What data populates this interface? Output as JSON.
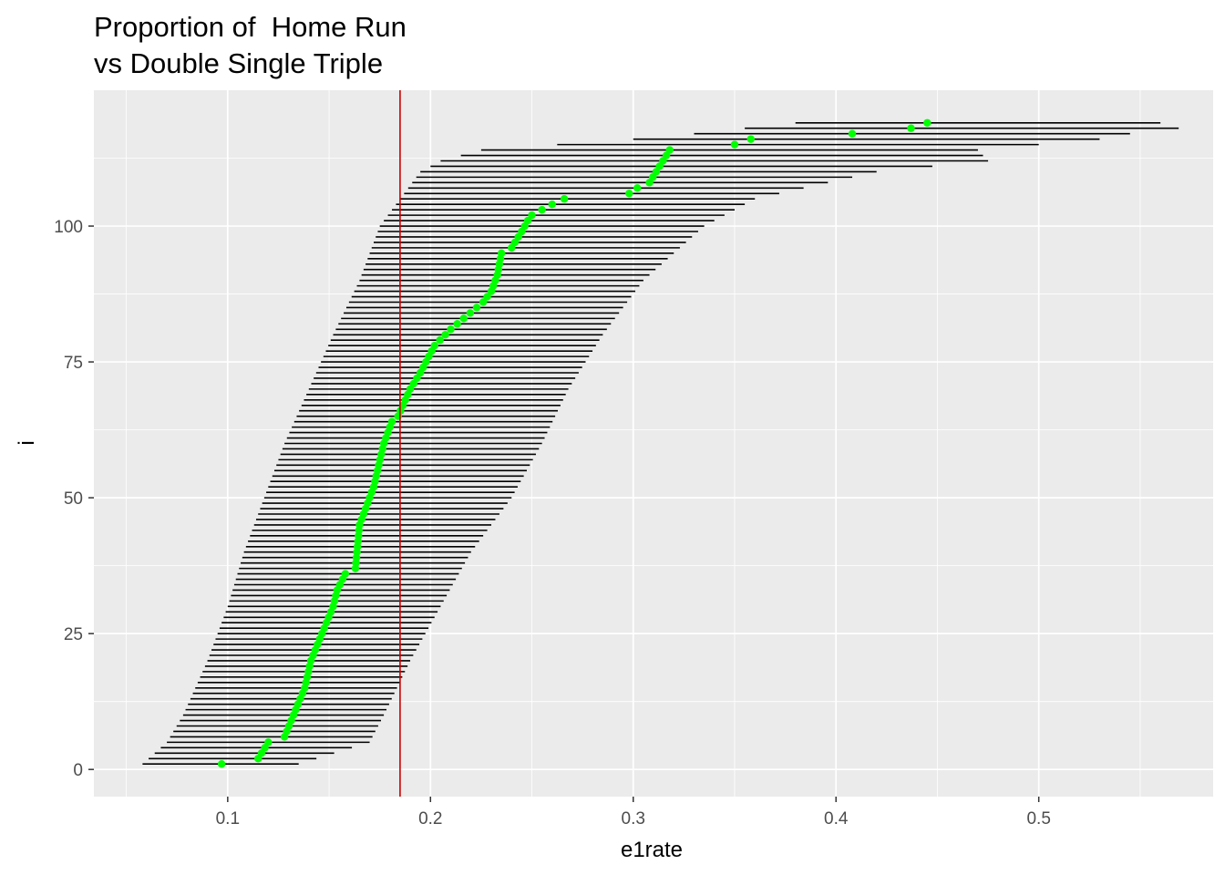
{
  "chart_data": {
    "type": "scatter",
    "title_lines": [
      "Proportion of  Home Run",
      "vs Double Single Triple"
    ],
    "xlabel": "e1rate",
    "ylabel": "i",
    "xlim": [
      0.034,
      0.586
    ],
    "ylim": [
      -5,
      125
    ],
    "xticks": [
      0.1,
      0.2,
      0.3,
      0.4,
      0.5
    ],
    "xtick_labels": [
      "0.1",
      "0.2",
      "0.3",
      "0.4",
      "0.5"
    ],
    "yticks": [
      0,
      25,
      50,
      75,
      100
    ],
    "ytick_labels": [
      "0",
      "25",
      "50",
      "75",
      "100"
    ],
    "grid": true,
    "reference_line": {
      "x": 0.185,
      "color": "#cc0000"
    },
    "point_color": "#00ff00",
    "interval_color": "#000000",
    "point_knots": [
      [
        1,
        0.097
      ],
      [
        2,
        0.115
      ],
      [
        5,
        0.12
      ],
      [
        6,
        0.128
      ],
      [
        15,
        0.138
      ],
      [
        20,
        0.141
      ],
      [
        30,
        0.152
      ],
      [
        33,
        0.154
      ],
      [
        36,
        0.158
      ],
      [
        37,
        0.163
      ],
      [
        45,
        0.165
      ],
      [
        52,
        0.172
      ],
      [
        60,
        0.177
      ],
      [
        64,
        0.181
      ],
      [
        65,
        0.184
      ],
      [
        70,
        0.19
      ],
      [
        73,
        0.195
      ],
      [
        78,
        0.202
      ],
      [
        81,
        0.21
      ],
      [
        86,
        0.226
      ],
      [
        88,
        0.23
      ],
      [
        91,
        0.233
      ],
      [
        95,
        0.235
      ],
      [
        96,
        0.24
      ],
      [
        99,
        0.245
      ],
      [
        101,
        0.248
      ],
      [
        102,
        0.25
      ],
      [
        104,
        0.26
      ],
      [
        105,
        0.266
      ],
      [
        106,
        0.298
      ],
      [
        107,
        0.302
      ],
      [
        108,
        0.308
      ],
      [
        114,
        0.318
      ],
      [
        115,
        0.35
      ],
      [
        116,
        0.358
      ],
      [
        117,
        0.408
      ],
      [
        118,
        0.437
      ],
      [
        119,
        0.445
      ]
    ],
    "lower_knots": [
      [
        1,
        0.058
      ],
      [
        5,
        0.07
      ],
      [
        10,
        0.078
      ],
      [
        20,
        0.09
      ],
      [
        30,
        0.1
      ],
      [
        40,
        0.108
      ],
      [
        50,
        0.118
      ],
      [
        60,
        0.128
      ],
      [
        70,
        0.14
      ],
      [
        80,
        0.152
      ],
      [
        90,
        0.165
      ],
      [
        100,
        0.175
      ],
      [
        105,
        0.185
      ],
      [
        110,
        0.195
      ],
      [
        112,
        0.205
      ],
      [
        114,
        0.225
      ],
      [
        116,
        0.3
      ],
      [
        117,
        0.33
      ],
      [
        118,
        0.355
      ],
      [
        119,
        0.38
      ]
    ],
    "upper_knots": [
      [
        1,
        0.135
      ],
      [
        5,
        0.17
      ],
      [
        10,
        0.177
      ],
      [
        20,
        0.19
      ],
      [
        30,
        0.205
      ],
      [
        40,
        0.22
      ],
      [
        50,
        0.24
      ],
      [
        60,
        0.255
      ],
      [
        70,
        0.268
      ],
      [
        80,
        0.285
      ],
      [
        90,
        0.305
      ],
      [
        100,
        0.335
      ],
      [
        105,
        0.36
      ],
      [
        110,
        0.42
      ],
      [
        112,
        0.475
      ],
      [
        114,
        0.47
      ],
      [
        116,
        0.53
      ],
      [
        117,
        0.545
      ],
      [
        118,
        0.569
      ],
      [
        119,
        0.56
      ]
    ],
    "n_points": 119
  }
}
